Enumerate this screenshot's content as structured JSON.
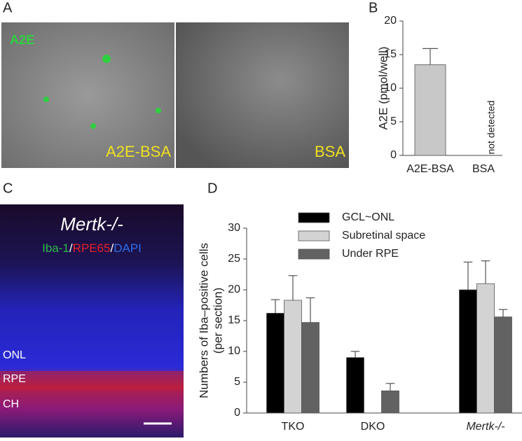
{
  "panels": {
    "A": {
      "label": "A",
      "image_labels": [
        "A2E",
        "A2E-BSA",
        "BSA"
      ]
    },
    "B": {
      "label": "B"
    },
    "C": {
      "label": "C",
      "title": "Mertk-/-",
      "stain_parts": [
        {
          "text": "Iba-1",
          "color": "#2fb84a"
        },
        {
          "text": "/",
          "color": "#ffffff"
        },
        {
          "text": "RPE65",
          "color": "#e8202a"
        },
        {
          "text": "/",
          "color": "#ffffff"
        },
        {
          "text": "DAPI",
          "color": "#2f6de8"
        }
      ],
      "layer_labels": [
        "ONL",
        "RPE",
        "CH"
      ]
    },
    "D": {
      "label": "D"
    }
  },
  "chart_data": [
    {
      "type": "bar",
      "ylabel": "A2E (pmol/well)",
      "categories": [
        "A2E-BSA",
        "BSA"
      ],
      "values": [
        13.5,
        null
      ],
      "errors": [
        2.4,
        null
      ],
      "color": "#c8c8c8",
      "annotation": "not detected",
      "ylim": [
        0,
        20
      ],
      "yticks": [
        0,
        5,
        10,
        15,
        20
      ]
    },
    {
      "type": "grouped-bar",
      "ylabel": [
        "Numbers of Iba–positive cells",
        "(per section)"
      ],
      "categories": [
        "TKO",
        "DKO",
        "Mertk-/-"
      ],
      "series": [
        {
          "name": "GCL~ONL",
          "color": "#000000",
          "values": [
            16.2,
            9.0,
            20.0
          ],
          "errors": [
            2.2,
            1.0,
            4.5
          ]
        },
        {
          "name": "Subretinal space",
          "color": "#d3d3d3",
          "values": [
            18.3,
            null,
            21.0
          ],
          "errors": [
            4.0,
            null,
            3.7
          ]
        },
        {
          "name": "Under RPE",
          "color": "#626262",
          "values": [
            14.7,
            3.6,
            15.6
          ],
          "errors": [
            4.0,
            1.2,
            1.2
          ]
        }
      ],
      "ylim": [
        0,
        30
      ],
      "yticks": [
        0,
        5,
        10,
        15,
        20,
        25,
        30
      ]
    }
  ]
}
